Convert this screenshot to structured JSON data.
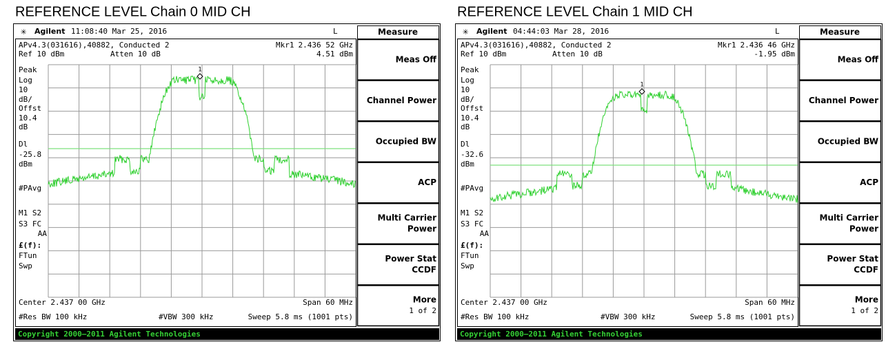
{
  "panels": [
    {
      "title": "REFERENCE LEVEL Chain 0 MID CH",
      "header": {
        "brand": "Agilent",
        "datetime": "11:08:40  Mar 25, 2016",
        "status": "L"
      },
      "info": {
        "setup": "APv4.3(031616),40882, Conducted 2",
        "marker_label": "Mkr1",
        "marker_freq": "2.436 52 GHz",
        "ref": "Ref 10 dBm",
        "atten": "Atten 10 dB",
        "marker_level": "4.51 dBm"
      },
      "side_labels": [
        "Peak",
        "Log",
        "10",
        "dB/",
        "Offst",
        "10.4",
        "dB",
        "Dl",
        "-25.8",
        "dBm",
        "#PAvg",
        "M1  S2",
        "S3  FC",
        "AA",
        "£(f):",
        "FTun",
        "Swp"
      ],
      "marker_number": "1",
      "footer": {
        "center": "Center 2.437 00 GHz",
        "span": "Span 60 MHz",
        "rbw": "#Res BW 100 kHz",
        "vbw": "#VBW 300 kHz",
        "sweep": "Sweep 5.8 ms (1001 pts)"
      },
      "menu_title": "Measure",
      "softkeys": [
        [
          "Meas Off"
        ],
        [
          "Channel Power"
        ],
        [
          "Occupied BW"
        ],
        [
          "ACP"
        ],
        [
          "Multi Carrier",
          "Power"
        ],
        [
          "Power Stat",
          "CCDF"
        ],
        [
          "More",
          "1 of 2"
        ]
      ],
      "copyright": "Copyright 2000–2011 Agilent Technologies"
    },
    {
      "title": "REFERENCE LEVEL Chain 1 MID CH",
      "header": {
        "brand": "Agilent",
        "datetime": "04:44:03  Mar 28, 2016",
        "status": "L"
      },
      "info": {
        "setup": "APv4.3(031616),40882, Conducted 2",
        "marker_label": "Mkr1",
        "marker_freq": "2.436 46 GHz",
        "ref": "Ref 10 dBm",
        "atten": "Atten 10 dB",
        "marker_level": "-1.95 dBm"
      },
      "side_labels": [
        "Peak",
        "Log",
        "10",
        "dB/",
        "Offst",
        "10.4",
        "dB",
        "Dl",
        "-32.6",
        "dBm",
        "#PAvg",
        "M1  S2",
        "S3  FC",
        "AA",
        "£(f):",
        "FTun",
        "Swp"
      ],
      "marker_number": "1",
      "footer": {
        "center": "Center 2.437 00 GHz",
        "span": "Span 60 MHz",
        "rbw": "#Res BW 100 kHz",
        "vbw": "#VBW 300 kHz",
        "sweep": "Sweep 5.8 ms (1001 pts)"
      },
      "menu_title": "Measure",
      "softkeys": [
        [
          "Meas Off"
        ],
        [
          "Channel Power"
        ],
        [
          "Occupied BW"
        ],
        [
          "ACP"
        ],
        [
          "Multi Carrier",
          "Power"
        ],
        [
          "Power Stat",
          "CCDF"
        ],
        [
          "More",
          "1 of 2"
        ]
      ],
      "copyright": "Copyright 2000–2011 Agilent Technologies"
    }
  ]
}
